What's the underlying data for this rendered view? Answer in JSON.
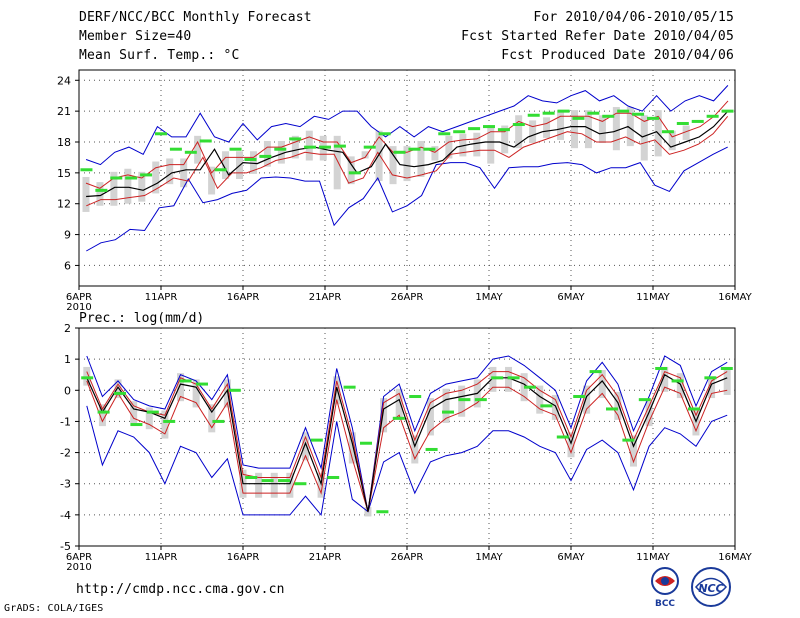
{
  "header": {
    "title": "DERF/NCC/BCC Monthly Forecast",
    "member_size": "Member Size=40",
    "variable": "Mean Surf. Temp.: °C",
    "period": "For 2010/04/06-2010/05/15",
    "refer_date": "Fcst Started Refer Date 2010/04/05",
    "produced_date": "Fcst Produced Date 2010/04/06"
  },
  "footer": {
    "url": "http://cmdp.ncc.cma.gov.cn",
    "credit": "GrADS: COLA/IGES"
  },
  "logos": {
    "left": "BCC",
    "right": "NCC"
  },
  "colors": {
    "ensemble_mean": "#000000",
    "spread": "#cc2222",
    "extremes": "#0000cc",
    "box": "#d3d3d3",
    "median_mark": "#33dd33"
  },
  "chart_data": [
    {
      "type": "line",
      "title": "Mean Surf. Temp.: °C",
      "ylim": [
        4,
        25
      ],
      "yticks": [
        6,
        9,
        12,
        15,
        18,
        21,
        24
      ],
      "xtick_labels": [
        "6APR\n2010",
        "11APR",
        "16APR",
        "21APR",
        "26APR",
        "1MAY",
        "6MAY",
        "11MAY",
        "16MAY"
      ],
      "days": 40,
      "series": [
        {
          "name": "max",
          "values": [
            16.3,
            15.8,
            17,
            17.5,
            16.8,
            19.5,
            18.5,
            18.5,
            20.8,
            18.5,
            18,
            19.8,
            18.2,
            19.5,
            19.8,
            19.5,
            20.5,
            20.2,
            21,
            21,
            19.5,
            18.5,
            19.5,
            18.5,
            19.5,
            19,
            19.5,
            20,
            20.5,
            21,
            21.5,
            22.5,
            22,
            21.8,
            22.5,
            23,
            22,
            22.5,
            21.5,
            21,
            22.5,
            21,
            22,
            22.5,
            22,
            23.5
          ]
        },
        {
          "name": "upper",
          "values": [
            14,
            13.5,
            14.5,
            14.8,
            14.5,
            15.5,
            15.8,
            15.8,
            18,
            15,
            16.5,
            16.5,
            16.5,
            17.5,
            17.5,
            18,
            18.5,
            18,
            18,
            16,
            16.5,
            18.5,
            17,
            17,
            17.5,
            17,
            18,
            18.2,
            18.3,
            19,
            19,
            20,
            19.5,
            19.8,
            20.5,
            20.5,
            20.5,
            20,
            20.8,
            20.8,
            20,
            20.5,
            18.5,
            19,
            19.5,
            20.5,
            22
          ]
        },
        {
          "name": "mean",
          "values": [
            12.7,
            12.8,
            13.6,
            13.6,
            13.3,
            14,
            15,
            15.3,
            15.3,
            17.3,
            14.8,
            16,
            15.9,
            16.5,
            17,
            17.3,
            17.5,
            17.2,
            17,
            15,
            15.6,
            17.8,
            15.8,
            15.6,
            15.8,
            16.2,
            17.5,
            17.8,
            18,
            18,
            17.5,
            18.5,
            19,
            19.2,
            19.5,
            19.5,
            18.8,
            19,
            19.5,
            18.5,
            19,
            17.5,
            18,
            18.5,
            19.5,
            21
          ]
        },
        {
          "name": "lower",
          "values": [
            11.8,
            12.4,
            12.4,
            12.6,
            12.8,
            13.6,
            14.5,
            14.2,
            16.5,
            13.5,
            15,
            15,
            15.5,
            16.2,
            16.5,
            17,
            16.8,
            16.8,
            14,
            14.5,
            17,
            14.8,
            14.5,
            14.8,
            15.2,
            16.8,
            17,
            17.2,
            17.2,
            16.5,
            17.5,
            18,
            18.5,
            19,
            18.8,
            18,
            18,
            18.5,
            17.8,
            18.2,
            16.8,
            17.2,
            17.8,
            18.8,
            20.5
          ]
        },
        {
          "name": "min",
          "values": [
            7.4,
            8.2,
            8.5,
            9.5,
            9.4,
            11.6,
            11.8,
            14.4,
            12.1,
            12.4,
            13,
            13.3,
            14.5,
            14.6,
            14.5,
            14.2,
            14.2,
            9.9,
            11.6,
            12.5,
            14.5,
            11.2,
            11.8,
            12.8,
            15.8,
            16,
            16,
            15.5,
            13.5,
            15.5,
            15.6,
            15.6,
            15.9,
            16,
            15.8,
            15,
            15.5,
            15.5,
            16,
            13.8,
            13.2,
            15.2,
            16,
            16.8,
            17.5
          ]
        },
        {
          "name": "median",
          "values": [
            15.3,
            13.3,
            14.5,
            14.5,
            14.8,
            18.8,
            17.3,
            17,
            18.1,
            15.3,
            17.3,
            16.3,
            16.6,
            17.3,
            18.3,
            17.5,
            17.5,
            17.6,
            15,
            17.5,
            18.8,
            17,
            17.3,
            17.3,
            18.8,
            19,
            19.3,
            19.5,
            19.2,
            19.7,
            20.6,
            20.8,
            21,
            20.3,
            20.8,
            20.5,
            21,
            20.7,
            20.3,
            19,
            19.8,
            20,
            20.5,
            21
          ]
        }
      ]
    },
    {
      "type": "line",
      "title": "Prec.: log(mm/d)",
      "ylim": [
        -5,
        2
      ],
      "yticks": [
        2,
        1,
        0,
        -1,
        -2,
        -3,
        -4,
        -5
      ],
      "xtick_labels": [
        "6APR\n2010",
        "11APR",
        "16APR",
        "21APR",
        "26APR",
        "1MAY",
        "6MAY",
        "11MAY",
        "16MAY"
      ],
      "days": 40,
      "series": [
        {
          "name": "max",
          "values": [
            1.1,
            -0.2,
            0.3,
            -0.3,
            -0.5,
            -0.6,
            0.5,
            0.3,
            -0.3,
            0.5,
            -2.4,
            -2.5,
            -2.5,
            -2.5,
            -1.2,
            -2.5,
            0.7,
            -1.2,
            -3.9,
            -0.2,
            0.2,
            -1.3,
            -0.1,
            0.2,
            0.3,
            0.4,
            1,
            1.1,
            0.8,
            0.4,
            0,
            -1.2,
            0.3,
            0.9,
            0.2,
            -1.3,
            -0.2,
            1.1,
            0.8,
            -0.5,
            0.6,
            0.9
          ]
        },
        {
          "name": "upper",
          "values": [
            0.6,
            -0.6,
            0.2,
            -0.5,
            -0.7,
            -0.8,
            0.4,
            0.2,
            -0.6,
            0.2,
            -2.7,
            -2.8,
            -2.8,
            -2.8,
            -1.5,
            -2.8,
            0.3,
            -1.5,
            -3.9,
            -0.4,
            -0.1,
            -1.6,
            -0.4,
            -0.1,
            0,
            0.2,
            0.6,
            0.6,
            0.4,
            0,
            -0.3,
            -1.5,
            0,
            0.5,
            -0.2,
            -1.6,
            -0.5,
            0.6,
            0.4,
            -0.8,
            0.3,
            0.6
          ]
        },
        {
          "name": "mean",
          "values": [
            0.4,
            -0.7,
            0.1,
            -0.6,
            -0.7,
            -0.9,
            0.2,
            0.1,
            -0.7,
            0,
            -3,
            -3,
            -3,
            -3,
            -1.7,
            -3,
            0.1,
            -1.7,
            -3.9,
            -0.6,
            -0.3,
            -1.8,
            -0.6,
            -0.3,
            -0.2,
            -0.1,
            0.4,
            0.4,
            0.2,
            -0.2,
            -0.5,
            -1.7,
            -0.2,
            0.3,
            -0.4,
            -1.8,
            -0.7,
            0.5,
            0.2,
            -1,
            0.2,
            0.4
          ]
        },
        {
          "name": "lower",
          "values": [
            0.3,
            -1,
            -0.1,
            -0.9,
            -1.1,
            -1.4,
            -0.2,
            -0.4,
            -1.2,
            -0.4,
            -3.3,
            -3.3,
            -3.3,
            -3.3,
            -2.1,
            -3.3,
            -0.3,
            -2.2,
            -3.9,
            -1.2,
            -0.8,
            -2.2,
            -1.3,
            -0.9,
            -0.7,
            -0.4,
            0.1,
            0.1,
            -0.2,
            -0.6,
            -0.8,
            -2,
            -0.6,
            -0.1,
            -0.8,
            -2.3,
            -1,
            0.1,
            -0.1,
            -1.3,
            -0.1,
            0
          ]
        },
        {
          "name": "min",
          "values": [
            -0.5,
            -2.4,
            -1.3,
            -1.5,
            -2,
            -3,
            -1.8,
            -2,
            -2.8,
            -2.2,
            -4,
            -4,
            -4,
            -4,
            -3.4,
            -4,
            -1,
            -3.5,
            -3.9,
            -2.3,
            -2,
            -3.3,
            -2.3,
            -2.1,
            -2,
            -1.8,
            -1.3,
            -1.3,
            -1.5,
            -1.8,
            -2,
            -2.9,
            -1.9,
            -1.6,
            -2,
            -3.2,
            -1.8,
            -1.2,
            -1.4,
            -1.8,
            -1,
            -0.8
          ]
        },
        {
          "name": "median",
          "values": [
            0.4,
            -0.7,
            -0.1,
            -1.1,
            -0.7,
            -1,
            0.3,
            0.2,
            -1,
            0,
            -2.8,
            -2.9,
            -2.9,
            -3,
            -1.6,
            -2.8,
            0.1,
            -1.7,
            -3.9,
            -0.9,
            -0.2,
            -1.9,
            -0.7,
            -0.3,
            -0.3,
            0.4,
            0.4,
            0.1,
            -0.5,
            -1.5,
            -0.2,
            0.6,
            -0.6,
            -1.6,
            -0.3,
            0.7,
            0.3,
            -0.6,
            0.4,
            0.7
          ]
        }
      ]
    }
  ]
}
